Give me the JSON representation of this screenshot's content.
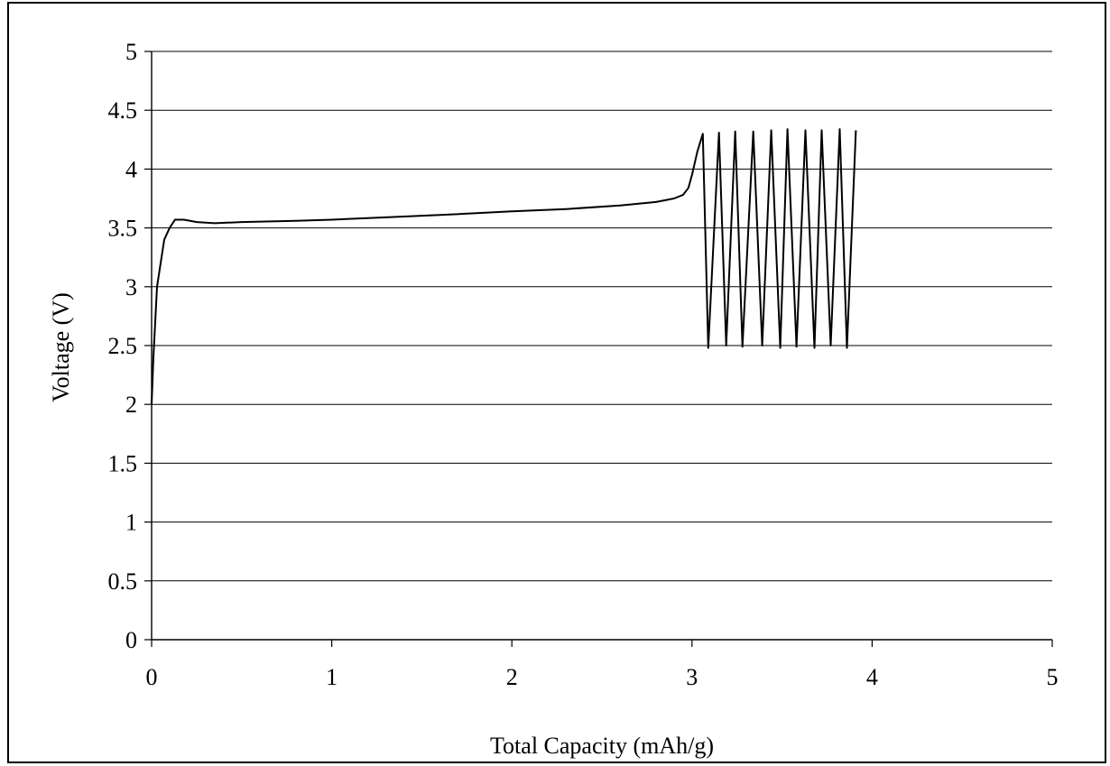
{
  "chart_data": {
    "type": "line",
    "title": "",
    "xlabel": "Total Capacity (mAh/g)",
    "ylabel": "Voltage (V)",
    "xlim": [
      0,
      5
    ],
    "ylim": [
      0,
      5
    ],
    "x_ticks": [
      "0",
      "1",
      "2",
      "3",
      "4",
      "5"
    ],
    "y_ticks": [
      "0",
      "0.5",
      "1",
      "1.5",
      "2",
      "2.5",
      "3",
      "3.5",
      "4",
      "4.5",
      "5"
    ],
    "grid": "horizontal",
    "legend": "none",
    "line_color": "#000000",
    "series": [
      {
        "x": [
          0.0,
          0.01,
          0.02,
          0.03,
          0.05,
          0.07,
          0.1,
          0.13,
          0.18,
          0.25,
          0.35,
          0.5,
          0.8,
          1.0,
          1.3,
          1.6,
          2.0,
          2.3,
          2.6,
          2.8,
          2.9,
          2.95,
          2.98,
          3.0,
          3.03,
          3.06,
          3.09,
          3.15,
          3.19,
          3.24,
          3.28,
          3.34,
          3.39,
          3.44,
          3.49,
          3.53,
          3.58,
          3.63,
          3.68,
          3.72,
          3.77,
          3.82,
          3.86,
          3.91
        ],
        "y": [
          2.0,
          2.4,
          2.7,
          3.0,
          3.2,
          3.4,
          3.5,
          3.57,
          3.57,
          3.55,
          3.54,
          3.55,
          3.56,
          3.57,
          3.59,
          3.61,
          3.64,
          3.66,
          3.69,
          3.72,
          3.75,
          3.78,
          3.84,
          3.95,
          4.15,
          4.3,
          2.48,
          4.31,
          2.5,
          4.32,
          2.49,
          4.32,
          2.5,
          4.33,
          2.48,
          4.34,
          2.49,
          4.33,
          2.48,
          4.33,
          2.5,
          4.34,
          2.48,
          4.33
        ]
      }
    ]
  }
}
